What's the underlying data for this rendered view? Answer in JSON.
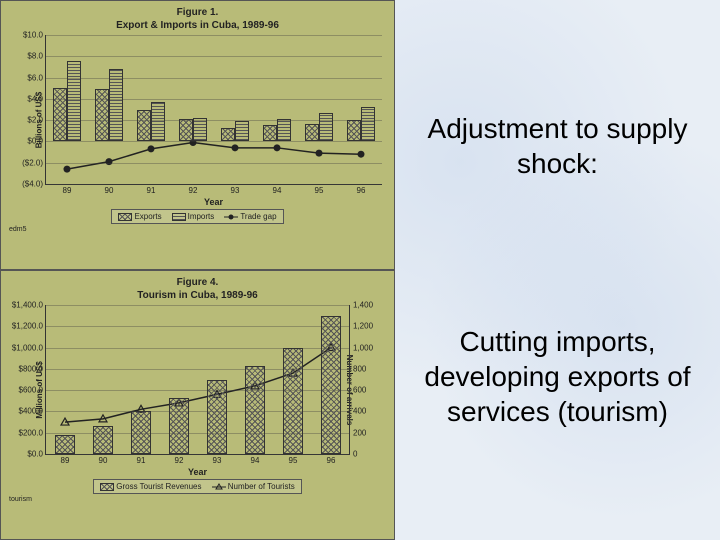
{
  "right_text": {
    "heading": "Adjustment to supply shock:",
    "body": "Cutting imports, developing exports of services (tourism)"
  },
  "fig1": {
    "type": "grouped-bar-with-line",
    "title_line1": "Figure 1.",
    "title_line2": "Export & Imports in Cuba, 1989-96",
    "years": [
      "89",
      "90",
      "91",
      "92",
      "93",
      "94",
      "95",
      "96"
    ],
    "exports": [
      5.0,
      4.9,
      3.0,
      2.1,
      1.3,
      1.5,
      1.6,
      2.0
    ],
    "imports": [
      7.6,
      6.8,
      3.7,
      2.2,
      1.9,
      2.1,
      2.7,
      3.2
    ],
    "trade_gap": [
      -2.6,
      -1.9,
      -0.7,
      -0.1,
      -0.6,
      -0.6,
      -1.1,
      -1.2
    ],
    "y_ticks": [
      -4,
      -2,
      0,
      2,
      4,
      6,
      8,
      10
    ],
    "y_tick_labels": [
      "($4.0)",
      "($2.0)",
      "$0.0",
      "$2.0",
      "$4.0",
      "$6.0",
      "$8.0",
      "$10.0"
    ],
    "ylim": [
      -4,
      10
    ],
    "x_label": "Year",
    "y_label": "Billions of US$",
    "legend": [
      {
        "label": "Exports",
        "type": "bar",
        "fill": "#8a8a5a",
        "hatch": "x"
      },
      {
        "label": "Imports",
        "type": "bar",
        "fill": "#8a8a5a",
        "hatch": "="
      },
      {
        "label": "Trade gap",
        "type": "line",
        "marker": "circle",
        "color": "#222"
      }
    ],
    "bar_group_width": 0.65,
    "colors": {
      "exports_fill": "#8a8a5a",
      "imports_fill": "#8a8a5a",
      "line": "#222",
      "grid": "#6a6a4a",
      "panel_bg": "#b8bb78"
    },
    "footnote": "edm5"
  },
  "fig4": {
    "type": "bar-with-line-dual-axis",
    "title_line1": "Figure 4.",
    "title_line2": "Tourism in Cuba, 1989-96",
    "years": [
      "89",
      "90",
      "91",
      "92",
      "93",
      "94",
      "95",
      "96"
    ],
    "revenues": [
      180,
      260,
      400,
      530,
      700,
      830,
      1000,
      1300
    ],
    "tourists": [
      300,
      330,
      420,
      480,
      560,
      640,
      760,
      1000
    ],
    "y_ticks_left": [
      0,
      200,
      400,
      600,
      800,
      1000,
      1200,
      1400
    ],
    "y_tick_labels_left": [
      "$0.0",
      "$200.0",
      "$400.0",
      "$600.0",
      "$800.0",
      "$1,000.0",
      "$1,200.0",
      "$1,400.0"
    ],
    "ylim_left": [
      0,
      1400
    ],
    "y_ticks_right": [
      0,
      200,
      400,
      600,
      800,
      1000,
      1200,
      1400
    ],
    "ylim_right": [
      0,
      1400
    ],
    "x_label": "Year",
    "y_label_left": "Millions of US$",
    "y_label_right": "Number of arrivals",
    "legend": [
      {
        "label": "Gross Tourist Revenues",
        "type": "bar",
        "fill": "#8a8a5a",
        "hatch": "x"
      },
      {
        "label": "Number of Tourists",
        "type": "line",
        "marker": "triangle",
        "color": "#222"
      }
    ],
    "bar_width": 0.55,
    "colors": {
      "bar_fill": "#8a8a5a",
      "line": "#222",
      "grid": "#6a6a4a",
      "panel_bg": "#b8bb78"
    },
    "footnote": "tourism"
  },
  "typography": {
    "title_fontsize": 10,
    "tick_fontsize": 8,
    "text_fontsize": 28
  }
}
